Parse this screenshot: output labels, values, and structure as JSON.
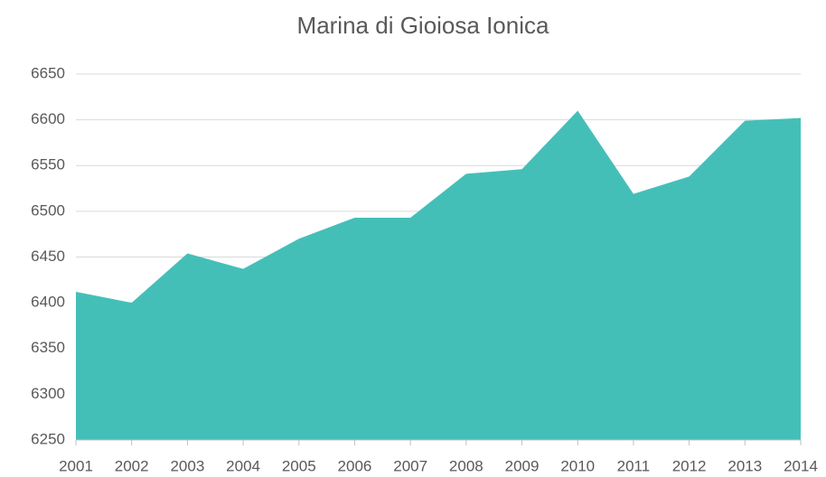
{
  "chart_data": {
    "type": "area",
    "title": "Marina di Gioiosa Ionica",
    "categories": [
      "2001",
      "2002",
      "2003",
      "2004",
      "2005",
      "2006",
      "2007",
      "2008",
      "2009",
      "2010",
      "2011",
      "2012",
      "2013",
      "2014"
    ],
    "values": [
      6412,
      6400,
      6454,
      6437,
      6470,
      6493,
      6493,
      6541,
      6546,
      6610,
      6519,
      6538,
      6599,
      6602
    ],
    "color": "#44bfb8",
    "ylim": [
      6250,
      6650
    ],
    "yticks": [
      6250,
      6300,
      6350,
      6400,
      6450,
      6500,
      6550,
      6600,
      6650
    ],
    "grid": true
  }
}
